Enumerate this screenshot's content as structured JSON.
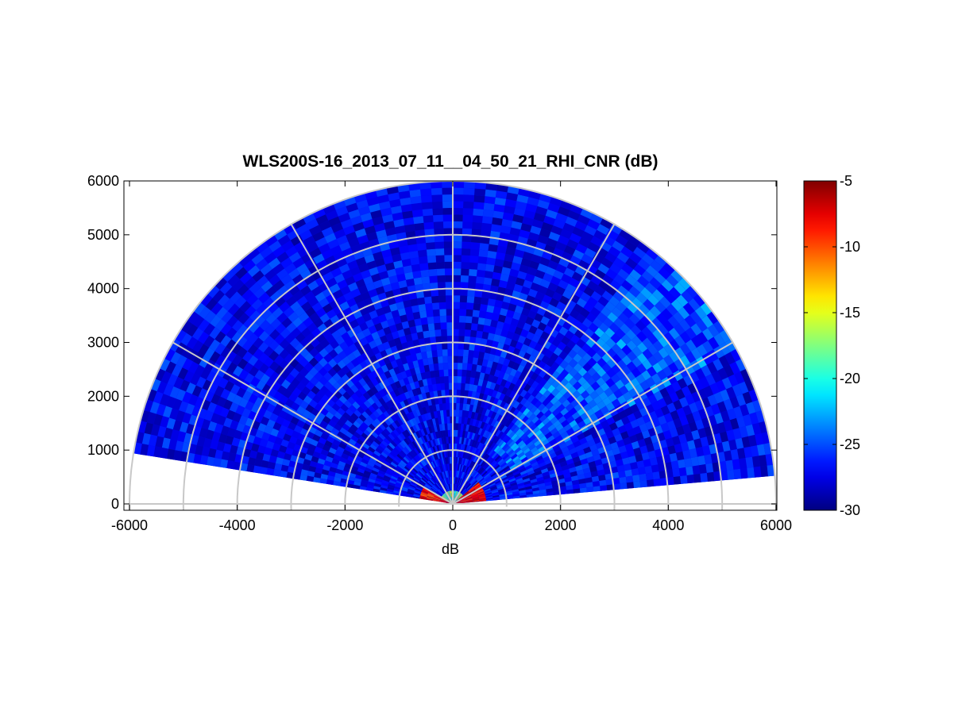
{
  "chart_data": {
    "type": "heatmap",
    "subtype": "polar RHI scan",
    "title": "WLS200S-16_2013_07_11__04_50_21_RHI_CNR (dB)",
    "xlabel": "dB",
    "ylabel": "",
    "xlim": [
      -6000,
      6000
    ],
    "ylim": [
      -100,
      6000
    ],
    "x_ticks": [
      "-6000",
      "-4000",
      "-2000",
      "0",
      "2000",
      "4000",
      "6000"
    ],
    "y_ticks": [
      "0",
      "1000",
      "2000",
      "3000",
      "4000",
      "5000",
      "6000"
    ],
    "x_tick_values": [
      -6000,
      -4000,
      -2000,
      0,
      2000,
      4000,
      6000
    ],
    "y_tick_values": [
      0,
      1000,
      2000,
      3000,
      4000,
      5000,
      6000
    ],
    "range_rings": [
      1000,
      2000,
      3000,
      4000,
      5000,
      6000
    ],
    "spoke_angles_deg": [
      0,
      30,
      60,
      90,
      120,
      150,
      180
    ],
    "scan": {
      "elevation_start_deg": 5,
      "elevation_end_deg": 171,
      "max_range": 6000,
      "typical_value_db": -27,
      "near_field_value_db": -6,
      "near_field_range": 700
    },
    "colorbar": {
      "colormap": "jet",
      "min": -30,
      "max": -5,
      "ticks": [
        "-5",
        "-10",
        "-15",
        "-20",
        "-25",
        "-30"
      ],
      "tick_values": [
        -5,
        -10,
        -15,
        -20,
        -25,
        -30
      ]
    },
    "grid": true
  }
}
